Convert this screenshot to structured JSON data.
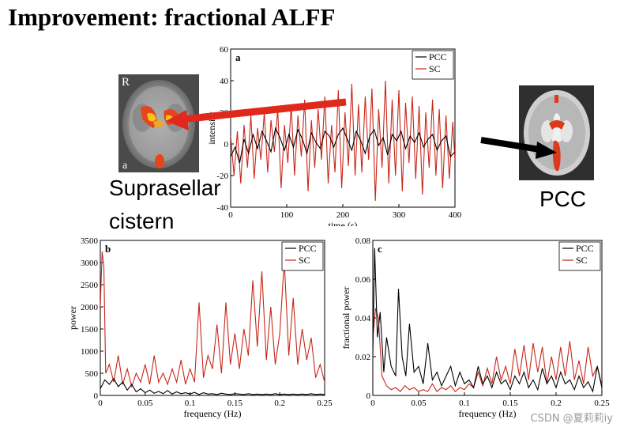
{
  "slide": {
    "title": "Improvement: fractional ALFF",
    "label_sc": [
      "Suprasellar",
      "cistern"
    ],
    "label_pcc": "PCC",
    "watermark": "CSDN @夏莉莉iy"
  },
  "brain_left": {
    "letter_top": "R",
    "letter_bottom": "a"
  },
  "colors": {
    "pcc": "#000000",
    "sc": "#c8261a",
    "arrow_red": "#e0281c",
    "arrow_black": "#000000"
  },
  "chart_data": [
    {
      "type": "line",
      "panel": "a",
      "xlabel": "time (s)",
      "ylabel": "intensity",
      "xlim": [
        0,
        400
      ],
      "ylim": [
        -40,
        60
      ],
      "xticks": [
        0,
        100,
        200,
        300,
        400
      ],
      "yticks": [
        -40,
        -20,
        0,
        20,
        40,
        60
      ],
      "legend_position": "top-right",
      "series": [
        {
          "name": "PCC",
          "color": "#000000",
          "x": [
            0,
            8,
            16,
            24,
            32,
            40,
            48,
            56,
            64,
            72,
            80,
            88,
            96,
            104,
            112,
            120,
            128,
            136,
            144,
            152,
            160,
            168,
            176,
            184,
            192,
            200,
            208,
            216,
            224,
            232,
            240,
            248,
            256,
            264,
            272,
            280,
            288,
            296,
            304,
            312,
            320,
            328,
            336,
            344,
            352,
            360,
            368,
            376,
            384,
            392,
            400
          ],
          "y": [
            -8,
            -2,
            -12,
            3,
            -6,
            6,
            -3,
            8,
            2,
            -5,
            10,
            4,
            -4,
            6,
            -2,
            9,
            3,
            -6,
            7,
            1,
            -3,
            8,
            5,
            -2,
            6,
            10,
            3,
            -4,
            8,
            2,
            -6,
            5,
            9,
            -1,
            4,
            -7,
            6,
            2,
            8,
            -3,
            5,
            1,
            7,
            -2,
            3,
            6,
            -4,
            2,
            5,
            -8,
            -5
          ]
        },
        {
          "name": "SC",
          "color": "#c8261a",
          "x": [
            0,
            6,
            12,
            18,
            24,
            30,
            36,
            42,
            48,
            54,
            60,
            66,
            72,
            78,
            84,
            90,
            96,
            102,
            108,
            114,
            120,
            126,
            132,
            138,
            144,
            150,
            156,
            162,
            168,
            174,
            180,
            186,
            192,
            198,
            204,
            210,
            216,
            222,
            228,
            234,
            240,
            246,
            252,
            258,
            264,
            270,
            276,
            282,
            288,
            294,
            300,
            306,
            312,
            318,
            324,
            330,
            336,
            342,
            348,
            354,
            360,
            366,
            372,
            378,
            384,
            390,
            396,
            400
          ],
          "y": [
            5,
            -20,
            8,
            -25,
            12,
            -15,
            18,
            -22,
            10,
            -10,
            20,
            -18,
            15,
            -5,
            22,
            -28,
            12,
            -12,
            25,
            -20,
            18,
            -8,
            28,
            -30,
            15,
            -15,
            22,
            -10,
            30,
            -25,
            12,
            -18,
            34,
            -28,
            20,
            -14,
            38,
            -20,
            25,
            -18,
            30,
            -10,
            35,
            -36,
            22,
            -15,
            40,
            -25,
            28,
            -20,
            34,
            -30,
            26,
            -12,
            30,
            -22,
            24,
            -32,
            20,
            -15,
            28,
            -20,
            22,
            -28,
            18,
            -22,
            14,
            -10
          ]
        }
      ]
    },
    {
      "type": "line",
      "panel": "b",
      "xlabel": "frequency (Hz)",
      "ylabel": "power",
      "xlim": [
        0,
        0.25
      ],
      "ylim": [
        0,
        3500
      ],
      "xticks": [
        0,
        0.05,
        0.1,
        0.15,
        0.2,
        0.25
      ],
      "yticks": [
        0,
        500,
        1000,
        1500,
        2000,
        2500,
        3000,
        3500
      ],
      "legend_position": "top-right",
      "series": [
        {
          "name": "PCC",
          "color": "#000000",
          "x": [
            0,
            0.005,
            0.01,
            0.015,
            0.02,
            0.025,
            0.03,
            0.035,
            0.04,
            0.045,
            0.05,
            0.055,
            0.06,
            0.065,
            0.07,
            0.075,
            0.08,
            0.085,
            0.09,
            0.095,
            0.1,
            0.105,
            0.11,
            0.115,
            0.12,
            0.125,
            0.13,
            0.135,
            0.14,
            0.145,
            0.15,
            0.155,
            0.16,
            0.165,
            0.17,
            0.175,
            0.18,
            0.185,
            0.19,
            0.195,
            0.2,
            0.205,
            0.21,
            0.215,
            0.22,
            0.225,
            0.23,
            0.235,
            0.24,
            0.245,
            0.25
          ],
          "y": [
            150,
            350,
            250,
            380,
            200,
            300,
            120,
            250,
            80,
            150,
            60,
            120,
            50,
            90,
            40,
            110,
            30,
            80,
            40,
            60,
            30,
            70,
            20,
            60,
            30,
            40,
            20,
            50,
            30,
            20,
            40,
            30,
            20,
            40,
            20,
            30,
            20,
            30,
            20,
            40,
            20,
            30,
            20,
            30,
            20,
            30,
            20,
            40,
            20,
            30,
            20
          ]
        },
        {
          "name": "SC",
          "color": "#c8261a",
          "x": [
            0,
            0.002,
            0.004,
            0.006,
            0.01,
            0.015,
            0.02,
            0.025,
            0.03,
            0.035,
            0.04,
            0.045,
            0.05,
            0.055,
            0.06,
            0.065,
            0.07,
            0.075,
            0.08,
            0.085,
            0.09,
            0.095,
            0.1,
            0.105,
            0.11,
            0.115,
            0.12,
            0.125,
            0.13,
            0.135,
            0.14,
            0.145,
            0.15,
            0.155,
            0.16,
            0.165,
            0.17,
            0.175,
            0.18,
            0.185,
            0.19,
            0.195,
            0.2,
            0.205,
            0.21,
            0.215,
            0.22,
            0.225,
            0.23,
            0.235,
            0.24,
            0.245,
            0.25
          ],
          "y": [
            2000,
            3250,
            2900,
            500,
            700,
            300,
            900,
            250,
            600,
            200,
            500,
            300,
            700,
            250,
            900,
            300,
            500,
            250,
            600,
            300,
            800,
            250,
            600,
            300,
            2100,
            400,
            900,
            600,
            1600,
            500,
            2100,
            700,
            1400,
            600,
            1500,
            900,
            2600,
            1100,
            2800,
            800,
            2000,
            700,
            1400,
            3050,
            900,
            2200,
            700,
            1500,
            800,
            1300,
            400,
            700,
            300
          ]
        }
      ]
    },
    {
      "type": "line",
      "panel": "c",
      "xlabel": "frequency (Hz)",
      "ylabel": "fractional power",
      "xlim": [
        0,
        0.25
      ],
      "ylim": [
        0,
        0.08
      ],
      "xticks": [
        0,
        0.05,
        0.1,
        0.15,
        0.2,
        0.25
      ],
      "yticks": [
        0,
        0.02,
        0.04,
        0.06,
        0.08
      ],
      "legend_position": "top-right",
      "series": [
        {
          "name": "PCC",
          "color": "#000000",
          "x": [
            0,
            0.002,
            0.005,
            0.008,
            0.012,
            0.015,
            0.02,
            0.025,
            0.028,
            0.032,
            0.036,
            0.04,
            0.045,
            0.05,
            0.055,
            0.06,
            0.065,
            0.07,
            0.075,
            0.08,
            0.085,
            0.09,
            0.095,
            0.1,
            0.105,
            0.11,
            0.115,
            0.12,
            0.125,
            0.13,
            0.135,
            0.14,
            0.145,
            0.15,
            0.155,
            0.16,
            0.165,
            0.17,
            0.175,
            0.18,
            0.185,
            0.19,
            0.195,
            0.2,
            0.205,
            0.21,
            0.215,
            0.22,
            0.225,
            0.23,
            0.235,
            0.24,
            0.245,
            0.25
          ],
          "y": [
            0.02,
            0.076,
            0.03,
            0.043,
            0.012,
            0.03,
            0.015,
            0.01,
            0.055,
            0.02,
            0.01,
            0.037,
            0.012,
            0.015,
            0.006,
            0.027,
            0.008,
            0.012,
            0.005,
            0.01,
            0.015,
            0.005,
            0.012,
            0.006,
            0.008,
            0.004,
            0.015,
            0.006,
            0.01,
            0.004,
            0.012,
            0.006,
            0.008,
            0.003,
            0.01,
            0.006,
            0.012,
            0.004,
            0.008,
            0.003,
            0.014,
            0.006,
            0.01,
            0.004,
            0.012,
            0.006,
            0.008,
            0.003,
            0.01,
            0.004,
            0.007,
            0.002,
            0.015,
            0.004
          ]
        },
        {
          "name": "SC",
          "color": "#c8261a",
          "x": [
            0,
            0.003,
            0.006,
            0.01,
            0.015,
            0.02,
            0.025,
            0.03,
            0.035,
            0.04,
            0.045,
            0.05,
            0.055,
            0.06,
            0.065,
            0.07,
            0.075,
            0.08,
            0.085,
            0.09,
            0.095,
            0.1,
            0.105,
            0.11,
            0.115,
            0.12,
            0.125,
            0.13,
            0.135,
            0.14,
            0.145,
            0.15,
            0.155,
            0.16,
            0.165,
            0.17,
            0.175,
            0.18,
            0.185,
            0.19,
            0.195,
            0.2,
            0.205,
            0.21,
            0.215,
            0.22,
            0.225,
            0.23,
            0.235,
            0.24,
            0.245,
            0.25
          ],
          "y": [
            0.03,
            0.045,
            0.04,
            0.01,
            0.005,
            0.003,
            0.004,
            0.002,
            0.005,
            0.003,
            0.004,
            0.002,
            0.003,
            0.002,
            0.006,
            0.002,
            0.004,
            0.003,
            0.005,
            0.002,
            0.004,
            0.003,
            0.006,
            0.004,
            0.012,
            0.005,
            0.014,
            0.006,
            0.02,
            0.008,
            0.015,
            0.006,
            0.024,
            0.01,
            0.026,
            0.008,
            0.027,
            0.012,
            0.025,
            0.006,
            0.02,
            0.008,
            0.025,
            0.01,
            0.028,
            0.008,
            0.018,
            0.006,
            0.025,
            0.01,
            0.015,
            0.005
          ]
        }
      ]
    }
  ]
}
